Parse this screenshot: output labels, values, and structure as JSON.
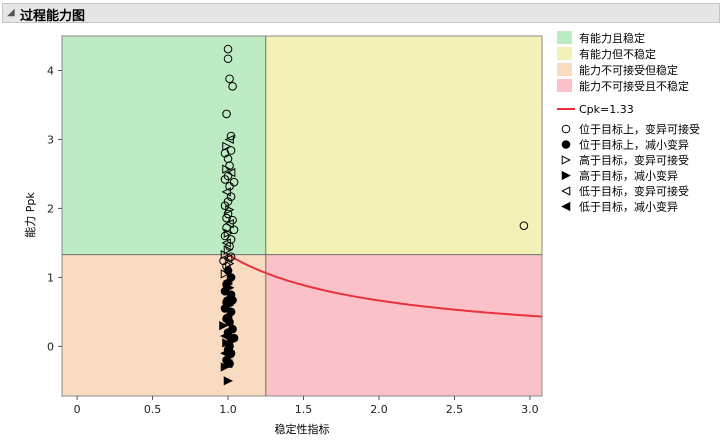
{
  "report": {
    "title": "过程能力图"
  },
  "chart_data": {
    "type": "scatter",
    "xlabel": "稳定性指标",
    "ylabel": "能力 Ppk",
    "xlim": [
      -0.1,
      3.08
    ],
    "ylim": [
      -0.72,
      4.5
    ],
    "x_ticks": [
      "0",
      "0.5",
      "1.0",
      "1.5",
      "2.0",
      "2.5",
      "3.0"
    ],
    "x_tick_values": [
      0,
      0.5,
      1.0,
      1.5,
      2.0,
      2.5,
      3.0
    ],
    "y_ticks": [
      "0",
      "1",
      "2",
      "3",
      "4"
    ],
    "y_tick_values": [
      0,
      1,
      2,
      3,
      4
    ],
    "stability_threshold": 1.25,
    "capability_threshold": 1.33,
    "regions": [
      {
        "name": "有能力且稳定",
        "color": "#bdebc3"
      },
      {
        "name": "有能力但不稳定",
        "color": "#f4f1b6"
      },
      {
        "name": "能力不可接受但稳定",
        "color": "#f8dbc1"
      },
      {
        "name": "能力不可接受且不稳定",
        "color": "#fbc1c8"
      }
    ],
    "cpk_curve": {
      "name": "Cpk=1.33",
      "color": "#e8323c"
    },
    "marker_legend": [
      {
        "symbol": "circle-open",
        "label": "位于目标上，变异可接受"
      },
      {
        "symbol": "circle-filled",
        "label": "位于目标上，减小变异"
      },
      {
        "symbol": "tri-right-open",
        "label": "高于目标，变异可接受"
      },
      {
        "symbol": "tri-right-filled",
        "label": "高于目标，减小变异"
      },
      {
        "symbol": "tri-left-open",
        "label": "低于目标，变异可接受"
      },
      {
        "symbol": "tri-left-filled",
        "label": "低于目标，减小变异"
      }
    ],
    "points": [
      {
        "x": 1.0,
        "y": 4.31,
        "s": "circle-open"
      },
      {
        "x": 1.0,
        "y": 4.17,
        "s": "circle-open"
      },
      {
        "x": 1.01,
        "y": 3.88,
        "s": "circle-open"
      },
      {
        "x": 1.03,
        "y": 3.77,
        "s": "circle-open"
      },
      {
        "x": 0.99,
        "y": 3.37,
        "s": "circle-open"
      },
      {
        "x": 1.02,
        "y": 3.05,
        "s": "circle-open"
      },
      {
        "x": 1.01,
        "y": 3.0,
        "s": "tri-left-open"
      },
      {
        "x": 0.99,
        "y": 2.9,
        "s": "tri-right-open"
      },
      {
        "x": 1.02,
        "y": 2.84,
        "s": "circle-open"
      },
      {
        "x": 0.98,
        "y": 2.8,
        "s": "circle-open"
      },
      {
        "x": 1.0,
        "y": 2.72,
        "s": "circle-open"
      },
      {
        "x": 1.01,
        "y": 2.62,
        "s": "circle-open"
      },
      {
        "x": 0.99,
        "y": 2.57,
        "s": "tri-right-open"
      },
      {
        "x": 1.02,
        "y": 2.52,
        "s": "tri-left-open"
      },
      {
        "x": 1.0,
        "y": 2.47,
        "s": "circle-open"
      },
      {
        "x": 0.98,
        "y": 2.42,
        "s": "circle-open"
      },
      {
        "x": 1.04,
        "y": 2.38,
        "s": "circle-open"
      },
      {
        "x": 1.01,
        "y": 2.32,
        "s": "circle-open"
      },
      {
        "x": 0.99,
        "y": 2.24,
        "s": "tri-left-open"
      },
      {
        "x": 1.02,
        "y": 2.17,
        "s": "circle-open"
      },
      {
        "x": 1.0,
        "y": 2.1,
        "s": "circle-open"
      },
      {
        "x": 0.98,
        "y": 2.04,
        "s": "circle-open"
      },
      {
        "x": 1.01,
        "y": 1.98,
        "s": "tri-right-open"
      },
      {
        "x": 1.0,
        "y": 1.92,
        "s": "circle-open"
      },
      {
        "x": 0.99,
        "y": 1.86,
        "s": "circle-open"
      },
      {
        "x": 1.03,
        "y": 1.83,
        "s": "circle-open"
      },
      {
        "x": 1.01,
        "y": 1.78,
        "s": "tri-left-open"
      },
      {
        "x": 0.99,
        "y": 1.72,
        "s": "circle-open"
      },
      {
        "x": 1.04,
        "y": 1.69,
        "s": "circle-open"
      },
      {
        "x": 1.0,
        "y": 1.64,
        "s": "tri-right-open"
      },
      {
        "x": 0.98,
        "y": 1.6,
        "s": "circle-open"
      },
      {
        "x": 1.02,
        "y": 1.55,
        "s": "circle-open"
      },
      {
        "x": 0.99,
        "y": 1.5,
        "s": "tri-left-open"
      },
      {
        "x": 1.01,
        "y": 1.45,
        "s": "circle-open"
      },
      {
        "x": 1.0,
        "y": 1.4,
        "s": "tri-right-open"
      },
      {
        "x": 2.96,
        "y": 1.75,
        "s": "circle-open"
      },
      {
        "x": 0.98,
        "y": 1.33,
        "s": "tri-right-open"
      },
      {
        "x": 1.02,
        "y": 1.3,
        "s": "circle-open"
      },
      {
        "x": 1.0,
        "y": 1.27,
        "s": "tri-left-open"
      },
      {
        "x": 0.97,
        "y": 1.24,
        "s": "circle-open"
      },
      {
        "x": 1.01,
        "y": 1.2,
        "s": "tri-right-open"
      },
      {
        "x": 0.99,
        "y": 1.16,
        "s": "circle-open"
      },
      {
        "x": 1.0,
        "y": 1.1,
        "s": "circle-filled"
      },
      {
        "x": 0.98,
        "y": 1.05,
        "s": "tri-right-open"
      },
      {
        "x": 1.02,
        "y": 1.0,
        "s": "circle-filled"
      },
      {
        "x": 1.0,
        "y": 0.95,
        "s": "tri-left-filled"
      },
      {
        "x": 0.99,
        "y": 0.9,
        "s": "circle-filled"
      },
      {
        "x": 1.01,
        "y": 0.85,
        "s": "tri-right-filled"
      },
      {
        "x": 0.98,
        "y": 0.8,
        "s": "circle-filled"
      },
      {
        "x": 1.02,
        "y": 0.75,
        "s": "circle-filled"
      },
      {
        "x": 1.0,
        "y": 0.7,
        "s": "tri-left-filled"
      },
      {
        "x": 1.03,
        "y": 0.67,
        "s": "circle-filled"
      },
      {
        "x": 0.99,
        "y": 0.64,
        "s": "circle-filled"
      },
      {
        "x": 1.01,
        "y": 0.6,
        "s": "tri-right-filled"
      },
      {
        "x": 0.98,
        "y": 0.55,
        "s": "circle-filled"
      },
      {
        "x": 1.02,
        "y": 0.5,
        "s": "circle-filled"
      },
      {
        "x": 1.0,
        "y": 0.45,
        "s": "tri-left-filled"
      },
      {
        "x": 0.99,
        "y": 0.4,
        "s": "circle-filled"
      },
      {
        "x": 1.01,
        "y": 0.35,
        "s": "circle-filled"
      },
      {
        "x": 0.97,
        "y": 0.3,
        "s": "tri-right-filled"
      },
      {
        "x": 1.03,
        "y": 0.25,
        "s": "circle-filled"
      },
      {
        "x": 1.0,
        "y": 0.2,
        "s": "circle-filled"
      },
      {
        "x": 0.98,
        "y": 0.15,
        "s": "tri-left-filled"
      },
      {
        "x": 1.02,
        "y": 0.1,
        "s": "circle-filled"
      },
      {
        "x": 1.04,
        "y": 0.12,
        "s": "circle-filled"
      },
      {
        "x": 0.99,
        "y": 0.05,
        "s": "tri-right-filled"
      },
      {
        "x": 1.01,
        "y": 0.0,
        "s": "circle-filled"
      },
      {
        "x": 1.0,
        "y": -0.05,
        "s": "circle-filled"
      },
      {
        "x": 0.98,
        "y": -0.1,
        "s": "tri-left-filled"
      },
      {
        "x": 1.02,
        "y": -0.1,
        "s": "circle-filled"
      },
      {
        "x": 1.01,
        "y": -0.15,
        "s": "tri-right-filled"
      },
      {
        "x": 0.99,
        "y": -0.2,
        "s": "circle-filled"
      },
      {
        "x": 1.0,
        "y": -0.25,
        "s": "tri-left-filled"
      },
      {
        "x": 0.98,
        "y": -0.3,
        "s": "tri-right-filled"
      },
      {
        "x": 1.01,
        "y": -0.25,
        "s": "circle-filled"
      },
      {
        "x": 1.0,
        "y": -0.5,
        "s": "tri-right-filled"
      }
    ]
  }
}
